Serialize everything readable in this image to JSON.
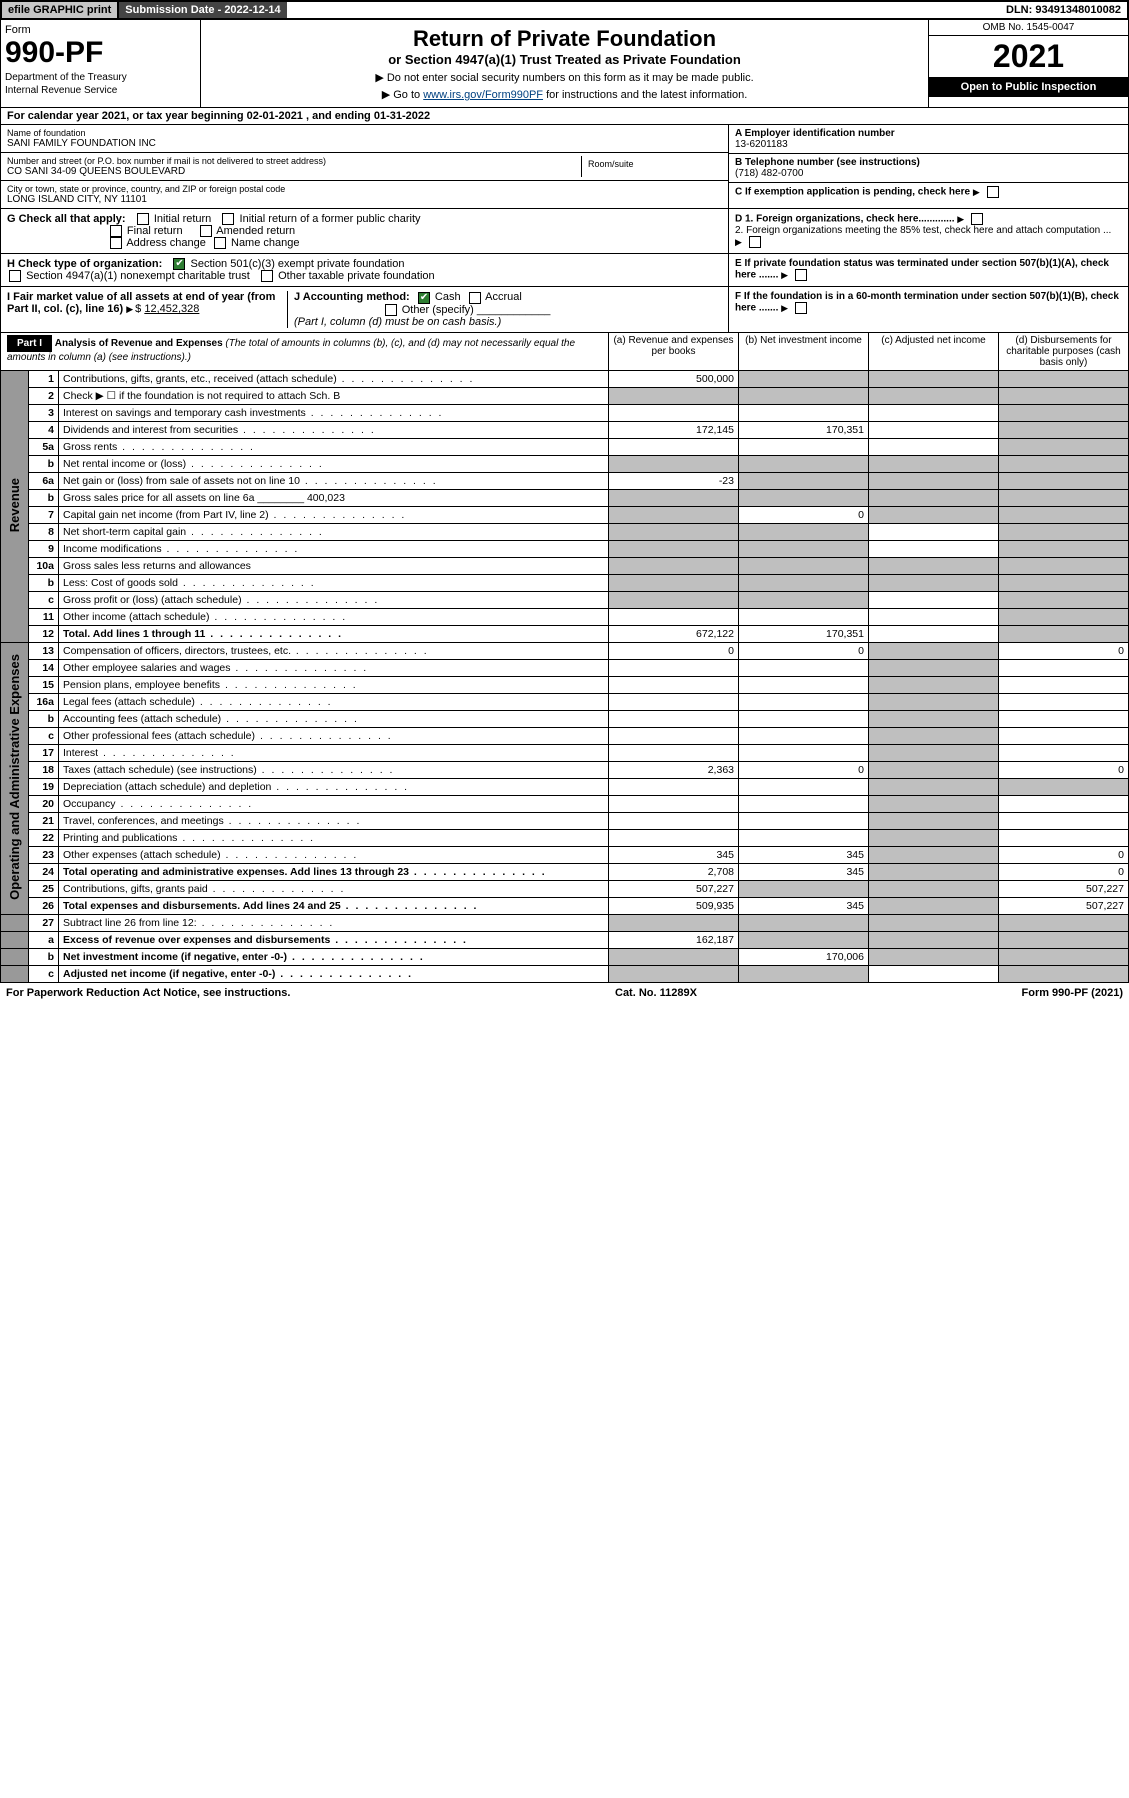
{
  "topbar": {
    "efile": "efile GRAPHIC print",
    "sub_date_label": "Submission Date - 2022-12-14",
    "dln": "DLN: 93491348010082"
  },
  "header": {
    "form_word": "Form",
    "form_no": "990-PF",
    "dept1": "Department of the Treasury",
    "dept2": "Internal Revenue Service",
    "title": "Return of Private Foundation",
    "subtitle": "or Section 4947(a)(1) Trust Treated as Private Foundation",
    "instr1": "▶ Do not enter social security numbers on this form as it may be made public.",
    "instr2_pre": "▶ Go to ",
    "instr2_link": "www.irs.gov/Form990PF",
    "instr2_post": " for instructions and the latest information.",
    "omb": "OMB No. 1545-0047",
    "year": "2021",
    "open": "Open to Public Inspection"
  },
  "calrow": {
    "pre": "For calendar year 2021, or tax year beginning ",
    "begin": "02-01-2021",
    "mid": " , and ending ",
    "end": "01-31-2022"
  },
  "infoL": {
    "name_label": "Name of foundation",
    "name": "SANI FAMILY FOUNDATION INC",
    "addr_label": "Number and street (or P.O. box number if mail is not delivered to street address)",
    "addr": "CO SANI 34-09 QUEENS BOULEVARD",
    "room_label": "Room/suite",
    "city_label": "City or town, state or province, country, and ZIP or foreign postal code",
    "city": "LONG ISLAND CITY, NY  11101"
  },
  "infoR": {
    "a_label": "A Employer identification number",
    "a_val": "13-6201183",
    "b_label": "B Telephone number (see instructions)",
    "b_val": "(718) 482-0700",
    "c_label": "C If exemption application is pending, check here",
    "d1": "D 1. Foreign organizations, check here.............",
    "d2": "2. Foreign organizations meeting the 85% test, check here and attach computation ...",
    "e": "E  If private foundation status was terminated under section 507(b)(1)(A), check here .......",
    "f": "F  If the foundation is in a 60-month termination under section 507(b)(1)(B), check here .......",
    "chk_initial": "Initial return",
    "chk_initial_former": "Initial return of a former public charity",
    "chk_final": "Final return",
    "chk_amended": "Amended return",
    "chk_addr": "Address change",
    "chk_name": "Name change"
  },
  "g": {
    "label": "G Check all that apply:"
  },
  "h": {
    "label": "H Check type of organization:",
    "o1": "Section 501(c)(3) exempt private foundation",
    "o2": "Section 4947(a)(1) nonexempt charitable trust",
    "o3": "Other taxable private foundation"
  },
  "i": {
    "label": "I Fair market value of all assets at end of year (from Part II, col. (c), line 16)",
    "val": "12,452,328",
    "j_label": "J Accounting method:",
    "j_cash": "Cash",
    "j_accr": "Accrual",
    "j_other": "Other (specify)",
    "j_note": "(Part I, column (d) must be on cash basis.)"
  },
  "part1": {
    "label": "Part I",
    "title": "Analysis of Revenue and Expenses",
    "note": " (The total of amounts in columns (b), (c), and (d) may not necessarily equal the amounts in column (a) (see instructions).)",
    "col_a": "(a) Revenue and expenses per books",
    "col_b": "(b) Net investment income",
    "col_c": "(c) Adjusted net income",
    "col_d": "(d) Disbursements for charitable purposes (cash basis only)"
  },
  "sidelabels": {
    "rev": "Revenue",
    "exp": "Operating and Administrative Expenses"
  },
  "lines": [
    {
      "n": "1",
      "d": "Contributions, gifts, grants, etc., received (attach schedule)",
      "a": "500,000",
      "bs": true,
      "cs": true,
      "ds": true
    },
    {
      "n": "2",
      "d": "Check ▶ ☐ if the foundation is not required to attach Sch. B",
      "dotsOff": true,
      "as": true,
      "bs": true,
      "cs": true,
      "ds": true
    },
    {
      "n": "3",
      "d": "Interest on savings and temporary cash investments",
      "cs": false,
      "ds": true
    },
    {
      "n": "4",
      "d": "Dividends and interest from securities",
      "a": "172,145",
      "b": "170,351",
      "ds": true
    },
    {
      "n": "5a",
      "d": "Gross rents",
      "ds": true
    },
    {
      "n": "b",
      "d": "Net rental income or (loss)",
      "as": true,
      "bs": true,
      "cs": true,
      "ds": true
    },
    {
      "n": "6a",
      "d": "Net gain or (loss) from sale of assets not on line 10",
      "a": "-23",
      "bs": true,
      "cs": true,
      "ds": true
    },
    {
      "n": "b",
      "d": "Gross sales price for all assets on line 6a ________ 400,023",
      "dotsOff": true,
      "as": true,
      "bs": true,
      "cs": true,
      "ds": true
    },
    {
      "n": "7",
      "d": "Capital gain net income (from Part IV, line 2)",
      "as": true,
      "b": "0",
      "cs": true,
      "ds": true
    },
    {
      "n": "8",
      "d": "Net short-term capital gain",
      "as": true,
      "bs": true,
      "ds": true
    },
    {
      "n": "9",
      "d": "Income modifications",
      "as": true,
      "bs": true,
      "ds": true
    },
    {
      "n": "10a",
      "d": "Gross sales less returns and allowances",
      "dotsOff": true,
      "as": true,
      "bs": true,
      "cs": true,
      "ds": true
    },
    {
      "n": "b",
      "d": "Less: Cost of goods sold",
      "as": true,
      "bs": true,
      "cs": true,
      "ds": true
    },
    {
      "n": "c",
      "d": "Gross profit or (loss) (attach schedule)",
      "as": true,
      "bs": true,
      "ds": true
    },
    {
      "n": "11",
      "d": "Other income (attach schedule)",
      "ds": true
    },
    {
      "n": "12",
      "d": "Total. Add lines 1 through 11",
      "bold": true,
      "a": "672,122",
      "b": "170,351",
      "ds": true
    },
    {
      "n": "13",
      "d": "Compensation of officers, directors, trustees, etc.",
      "a": "0",
      "b": "0",
      "cs": true,
      "dv": "0"
    },
    {
      "n": "14",
      "d": "Other employee salaries and wages",
      "cs": true
    },
    {
      "n": "15",
      "d": "Pension plans, employee benefits",
      "cs": true
    },
    {
      "n": "16a",
      "d": "Legal fees (attach schedule)",
      "cs": true
    },
    {
      "n": "b",
      "d": "Accounting fees (attach schedule)",
      "cs": true
    },
    {
      "n": "c",
      "d": "Other professional fees (attach schedule)",
      "cs": true
    },
    {
      "n": "17",
      "d": "Interest",
      "cs": true
    },
    {
      "n": "18",
      "d": "Taxes (attach schedule) (see instructions)",
      "a": "2,363",
      "b": "0",
      "cs": true,
      "dv": "0"
    },
    {
      "n": "19",
      "d": "Depreciation (attach schedule) and depletion",
      "cs": true,
      "ds": true
    },
    {
      "n": "20",
      "d": "Occupancy",
      "cs": true
    },
    {
      "n": "21",
      "d": "Travel, conferences, and meetings",
      "cs": true
    },
    {
      "n": "22",
      "d": "Printing and publications",
      "cs": true
    },
    {
      "n": "23",
      "d": "Other expenses (attach schedule)",
      "a": "345",
      "b": "345",
      "cs": true,
      "dv": "0"
    },
    {
      "n": "24",
      "d": "Total operating and administrative expenses. Add lines 13 through 23",
      "bold": true,
      "a": "2,708",
      "b": "345",
      "cs": true,
      "dv": "0"
    },
    {
      "n": "25",
      "d": "Contributions, gifts, grants paid",
      "a": "507,227",
      "bs": true,
      "cs": true,
      "dv": "507,227"
    },
    {
      "n": "26",
      "d": "Total expenses and disbursements. Add lines 24 and 25",
      "bold": true,
      "a": "509,935",
      "b": "345",
      "cs": true,
      "dv": "507,227"
    },
    {
      "n": "27",
      "d": "Subtract line 26 from line 12:",
      "as": true,
      "bs": true,
      "cs": true,
      "ds": true
    },
    {
      "n": "a",
      "d": "Excess of revenue over expenses and disbursements",
      "bold": true,
      "a": "162,187",
      "bs": true,
      "cs": true,
      "ds": true
    },
    {
      "n": "b",
      "d": "Net investment income (if negative, enter -0-)",
      "bold": true,
      "as": true,
      "b": "170,006",
      "cs": true,
      "ds": true
    },
    {
      "n": "c",
      "d": "Adjusted net income (if negative, enter -0-)",
      "bold": true,
      "as": true,
      "bs": true,
      "ds": true
    }
  ],
  "footer": {
    "left": "For Paperwork Reduction Act Notice, see instructions.",
    "mid": "Cat. No. 11289X",
    "right": "Form 990-PF (2021)"
  }
}
